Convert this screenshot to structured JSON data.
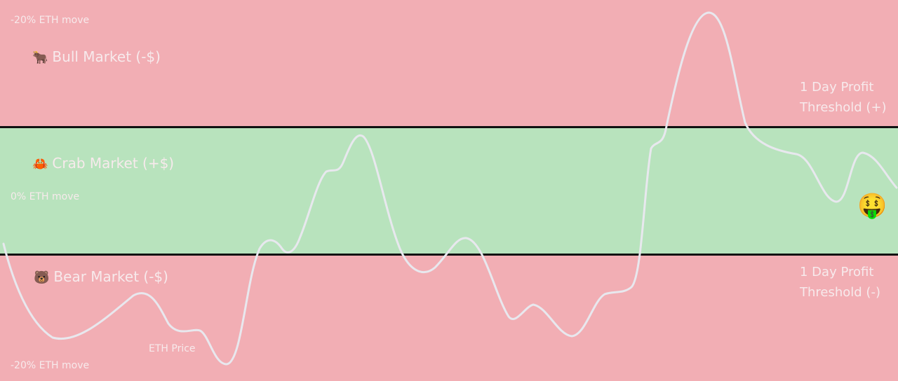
{
  "axis": {
    "top_label": "-20% ETH move",
    "middle_label": "0% ETH move",
    "bottom_label": "-20% ETH move"
  },
  "zones": {
    "bull": {
      "label": "Bull Market (-$)",
      "icon": "ox-icon",
      "glyph": "🐂"
    },
    "crab": {
      "label": "Crab Market (+$)",
      "icon": "crab-icon",
      "glyph": "🦀"
    },
    "bear": {
      "label": "Bear Market (-$)",
      "icon": "bear-icon",
      "glyph": "🐻"
    }
  },
  "thresholds": {
    "upper": {
      "line1": "1 Day Profit",
      "line2": "Threshold (+)"
    },
    "lower": {
      "line1": "1 Day Profit",
      "line2": "Threshold (-)"
    }
  },
  "series_label": "ETH Price",
  "endpoint": {
    "icon": "money-mouth-face-icon",
    "glyph": "🤑"
  },
  "colors": {
    "loss_zone": "#f2aeb4",
    "profit_zone": "#b8e3bd",
    "threshold_line": "#111111",
    "price_line": "#e8e8ee",
    "label_text": "#f7eaec"
  }
}
